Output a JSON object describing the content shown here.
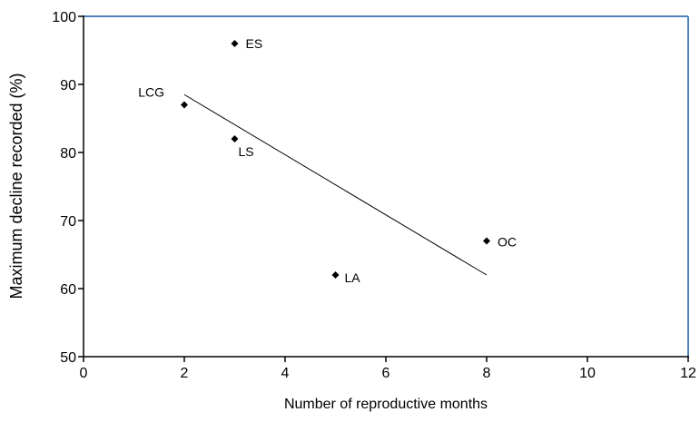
{
  "chart_data": {
    "type": "scatter",
    "x_label": "Number of reproductive months",
    "y_label": "Maximum decline recorded (%)",
    "x": [
      3,
      2,
      3,
      5,
      8
    ],
    "values": [
      96,
      87,
      82,
      62,
      67
    ],
    "point_labels": [
      "ES",
      "LCG",
      "LS",
      "LA",
      "OC"
    ],
    "color": "#000000",
    "trendline": {
      "x": [
        2,
        8
      ],
      "y": [
        88.5,
        62.0
      ]
    },
    "xlim": [
      0,
      12
    ],
    "xticks": [
      0,
      2,
      4,
      6,
      8,
      10,
      12
    ],
    "ylim": [
      50,
      100
    ],
    "yticks": [
      50,
      60,
      70,
      80,
      90,
      100
    ],
    "frame_color": "#4f81bd"
  }
}
